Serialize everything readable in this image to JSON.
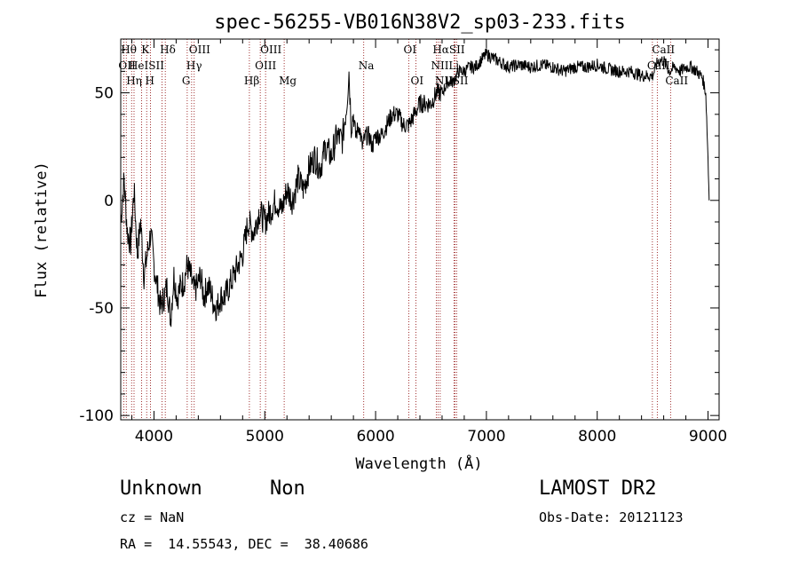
{
  "chart_data": {
    "type": "line",
    "title": "spec-56255-VB016N38V2_sp03-233.fits",
    "xlabel": "Wavelength (Å)",
    "ylabel": "Flux (relative)",
    "xlim": [
      3700,
      9100
    ],
    "ylim": [
      -102,
      75
    ],
    "xticks": [
      4000,
      5000,
      6000,
      7000,
      8000,
      9000
    ],
    "yticks": [
      -100,
      -50,
      0,
      50
    ],
    "grid": false,
    "series": [
      {
        "x": [
          3700,
          3730,
          3760,
          3790,
          3820,
          3850,
          3880,
          3910,
          3940,
          3970,
          4000,
          4030,
          4060,
          4090,
          4120,
          4150,
          4180,
          4210,
          4240,
          4270,
          4300,
          4330,
          4360,
          4390,
          4420,
          4450,
          4480,
          4510,
          4540,
          4570,
          4600,
          4640,
          4680,
          4720,
          4760,
          4800,
          4850,
          4900,
          4950,
          5000,
          5050,
          5100,
          5150,
          5200,
          5250,
          5300,
          5350,
          5400,
          5450,
          5500,
          5550,
          5600,
          5650,
          5700,
          5740,
          5760,
          5780,
          5800,
          5820,
          5850,
          5880,
          5910,
          5940,
          5970,
          6000,
          6050,
          6100,
          6150,
          6200,
          6250,
          6300,
          6350,
          6400,
          6450,
          6500,
          6550,
          6600,
          6650,
          6700,
          6750,
          6800,
          6850,
          6900,
          6950,
          7000,
          7100,
          7200,
          7300,
          7400,
          7500,
          7600,
          7700,
          7800,
          7900,
          8000,
          8100,
          8200,
          8300,
          8400,
          8500,
          8550,
          8600,
          8650,
          8700,
          8750,
          8800,
          8850,
          8900,
          8950,
          8980,
          9000,
          9010
        ],
        "y": [
          -10,
          10,
          -15,
          -20,
          5,
          -25,
          -10,
          -35,
          -25,
          -15,
          -30,
          -40,
          -50,
          -45,
          -40,
          -55,
          -35,
          -45,
          -40,
          -38,
          -30,
          -35,
          -42,
          -40,
          -35,
          -45,
          -40,
          -42,
          -48,
          -50,
          -45,
          -45,
          -40,
          -35,
          -30,
          -25,
          -10,
          -15,
          -5,
          -10,
          -5,
          0,
          -5,
          5,
          0,
          10,
          5,
          15,
          20,
          15,
          25,
          20,
          30,
          28,
          45,
          60,
          35,
          40,
          30,
          35,
          25,
          30,
          30,
          25,
          30,
          30,
          35,
          40,
          40,
          35,
          35,
          40,
          45,
          45,
          45,
          50,
          50,
          55,
          55,
          60,
          60,
          62,
          62,
          65,
          68,
          65,
          62,
          63,
          62,
          63,
          62,
          60,
          62,
          62,
          63,
          61,
          60,
          60,
          58,
          58,
          65,
          65,
          60,
          62,
          60,
          62,
          62,
          60,
          57,
          50,
          20,
          0
        ],
        "color": "#000000"
      }
    ],
    "line_marks": [
      {
        "wavelength": 3727,
        "label": "OII"
      },
      {
        "wavelength": 3750,
        "label": "Hθ"
      },
      {
        "wavelength": 3798,
        "label": "Hη"
      },
      {
        "wavelength": 3820,
        "label": "HeI"
      },
      {
        "wavelength": 3889,
        "label": "Hη"
      },
      {
        "wavelength": 3934,
        "label": "K"
      },
      {
        "wavelength": 3968,
        "label": "H"
      },
      {
        "wavelength": 4072,
        "label": "SII"
      },
      {
        "wavelength": 4102,
        "label": "Hδ"
      },
      {
        "wavelength": 4300,
        "label": "G"
      },
      {
        "wavelength": 4340,
        "label": "Hγ"
      },
      {
        "wavelength": 4363,
        "label": "OIII"
      },
      {
        "wavelength": 4861,
        "label": "Hβ"
      },
      {
        "wavelength": 4959,
        "label": "OIII"
      },
      {
        "wavelength": 5007,
        "label": "OIII"
      },
      {
        "wavelength": 5175,
        "label": "Mg"
      },
      {
        "wavelength": 5893,
        "label": "Na"
      },
      {
        "wavelength": 6300,
        "label": "OI"
      },
      {
        "wavelength": 6364,
        "label": "OI"
      },
      {
        "wavelength": 6548,
        "label": "NII"
      },
      {
        "wavelength": 6563,
        "label": "Hα"
      },
      {
        "wavelength": 6583,
        "label": "NII"
      },
      {
        "wavelength": 6707,
        "label": "Li"
      },
      {
        "wavelength": 6716,
        "label": "SII"
      },
      {
        "wavelength": 6731,
        "label": "SII"
      },
      {
        "wavelength": 8498,
        "label": "CaII"
      },
      {
        "wavelength": 8542,
        "label": "CaII"
      },
      {
        "wavelength": 8662,
        "label": "CaII"
      }
    ]
  },
  "labels": [
    {
      "text": "Hθ",
      "wl": 3750,
      "row": 0
    },
    {
      "text": "K",
      "wl": 3934,
      "row": 0
    },
    {
      "text": "Hδ",
      "wl": 4102,
      "row": 0
    },
    {
      "text": "OIII",
      "wl": 4363,
      "row": 0
    },
    {
      "text": "OIII",
      "wl": 5007,
      "row": 0
    },
    {
      "text": "OI",
      "wl": 6300,
      "row": 0
    },
    {
      "text": "HαSII",
      "wl": 6563,
      "row": 0
    },
    {
      "text": "CaII",
      "wl": 8542,
      "row": 0
    },
    {
      "text": "OII",
      "wl": 3727,
      "row": 1
    },
    {
      "text": "HeISII",
      "wl": 3820,
      "row": 1
    },
    {
      "text": "Hγ",
      "wl": 4340,
      "row": 1
    },
    {
      "text": "OIII",
      "wl": 4959,
      "row": 1
    },
    {
      "text": "Na",
      "wl": 5893,
      "row": 1
    },
    {
      "text": "NII",
      "wl": 6548,
      "row": 1
    },
    {
      "text": "Li",
      "wl": 6707,
      "row": 1
    },
    {
      "text": "CaII",
      "wl": 8498,
      "row": 1
    },
    {
      "text": "Hη",
      "wl": 3798,
      "row": 2
    },
    {
      "text": "H",
      "wl": 3968,
      "row": 2
    },
    {
      "text": "G",
      "wl": 4300,
      "row": 2
    },
    {
      "text": "Hβ",
      "wl": 4861,
      "row": 2
    },
    {
      "text": "Mg",
      "wl": 5175,
      "row": 2
    },
    {
      "text": "OI",
      "wl": 6364,
      "row": 2
    },
    {
      "text": "NIISII",
      "wl": 6583,
      "row": 2
    },
    {
      "text": "CaII",
      "wl": 8662,
      "row": 2
    }
  ],
  "info": {
    "class": "Unknown",
    "subclass": "Non",
    "survey": "LAMOST DR2",
    "cz": "cz = NaN",
    "obs_date": "Obs-Date: 20121123",
    "radec": "RA =  14.55543, DEC =  38.40686"
  },
  "colors": {
    "spectrum": "#000000",
    "line_marker": "#8b0000",
    "axis": "#000000"
  }
}
